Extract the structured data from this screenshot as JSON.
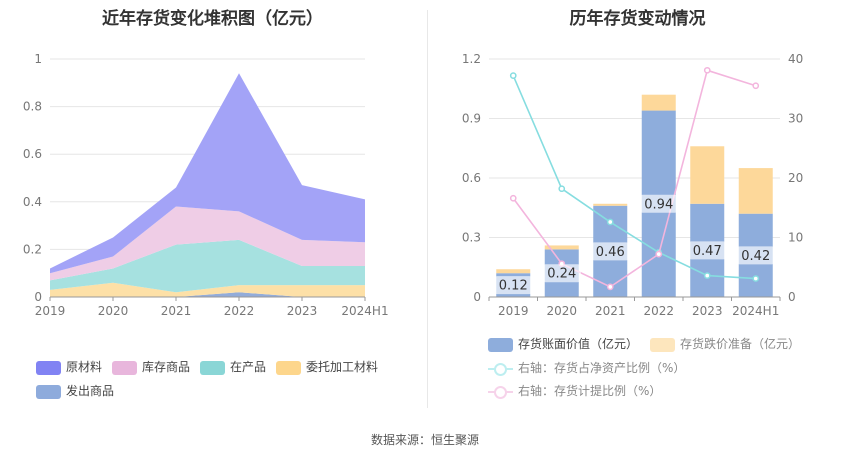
{
  "left": {
    "title": "近年存货变化堆积图（亿元）",
    "chart_data": {
      "type": "area",
      "stacked": true,
      "categories": [
        "2019",
        "2020",
        "2021",
        "2022",
        "2023",
        "2024H1"
      ],
      "ylim": [
        0,
        1
      ],
      "yticks": [
        "0",
        "0.2",
        "0.4",
        "0.6",
        "0.8",
        "1"
      ],
      "series": [
        {
          "name": "发出商品",
          "color": "#93acd9",
          "values": [
            0,
            0,
            0,
            0.02,
            0,
            0
          ]
        },
        {
          "name": "委托加工材料",
          "color": "#fde0a7",
          "values": [
            0.03,
            0.06,
            0.02,
            0.03,
            0.05,
            0.05
          ]
        },
        {
          "name": "在产品",
          "color": "#a6e1e0",
          "values": [
            0.04,
            0.06,
            0.2,
            0.19,
            0.08,
            0.08
          ]
        },
        {
          "name": "库存商品",
          "color": "#efcde6",
          "values": [
            0.03,
            0.05,
            0.16,
            0.12,
            0.11,
            0.1
          ]
        },
        {
          "name": "原材料",
          "color": "#a3a3f7",
          "values": [
            0.02,
            0.08,
            0.08,
            0.58,
            0.23,
            0.18
          ]
        }
      ]
    },
    "legend": [
      {
        "label": "原材料",
        "color": "#8183f3"
      },
      {
        "label": "库存商品",
        "color": "#e8b6dc"
      },
      {
        "label": "在产品",
        "color": "#8ad6d6"
      },
      {
        "label": "委托加工材料",
        "color": "#fdd68c"
      },
      {
        "label": "发出商品",
        "color": "#8eabdc"
      }
    ]
  },
  "right": {
    "title": "历年存货变动情况",
    "chart_data": {
      "type": "bar",
      "categories": [
        "2019",
        "2020",
        "2021",
        "2022",
        "2023",
        "2024H1"
      ],
      "ylim_left": [
        0,
        1.2
      ],
      "yticks_left": [
        "0",
        "0.3",
        "0.6",
        "0.9",
        "1.2"
      ],
      "ylim_right": [
        0,
        40
      ],
      "yticks_right": [
        "0",
        "10",
        "20",
        "30",
        "40"
      ],
      "bars": [
        {
          "name": "存货账面价值（亿元）",
          "color": "#8eaddc",
          "values": [
            0.12,
            0.24,
            0.46,
            0.94,
            0.47,
            0.42
          ],
          "labels": [
            "0.12",
            "0.24",
            "0.46",
            "0.94",
            "0.47",
            "0.42"
          ]
        },
        {
          "name": "存货跌价准备（亿元）",
          "color": "#fdd89a",
          "values": [
            0.02,
            0.02,
            0.01,
            0.08,
            0.29,
            0.23
          ]
        }
      ],
      "lines": [
        {
          "name": "右轴：存货占净资产比例（%）",
          "color": "#86dde0",
          "values": [
            37.2,
            18.2,
            12.6,
            7.5,
            3.6,
            3.1
          ]
        },
        {
          "name": "右轴：存货计提比例（%）",
          "color": "#f3b5dd",
          "values": [
            16.6,
            5.6,
            1.7,
            7.2,
            38.1,
            35.5
          ]
        }
      ]
    },
    "legend": [
      {
        "label": "存货账面价值（亿元）"
      },
      {
        "label": "存货跌价准备（亿元）"
      },
      {
        "label": "右轴：存货占净资产比例（%）"
      },
      {
        "label": "右轴：存货计提比例（%）"
      }
    ]
  },
  "source": "数据来源：恒生聚源"
}
